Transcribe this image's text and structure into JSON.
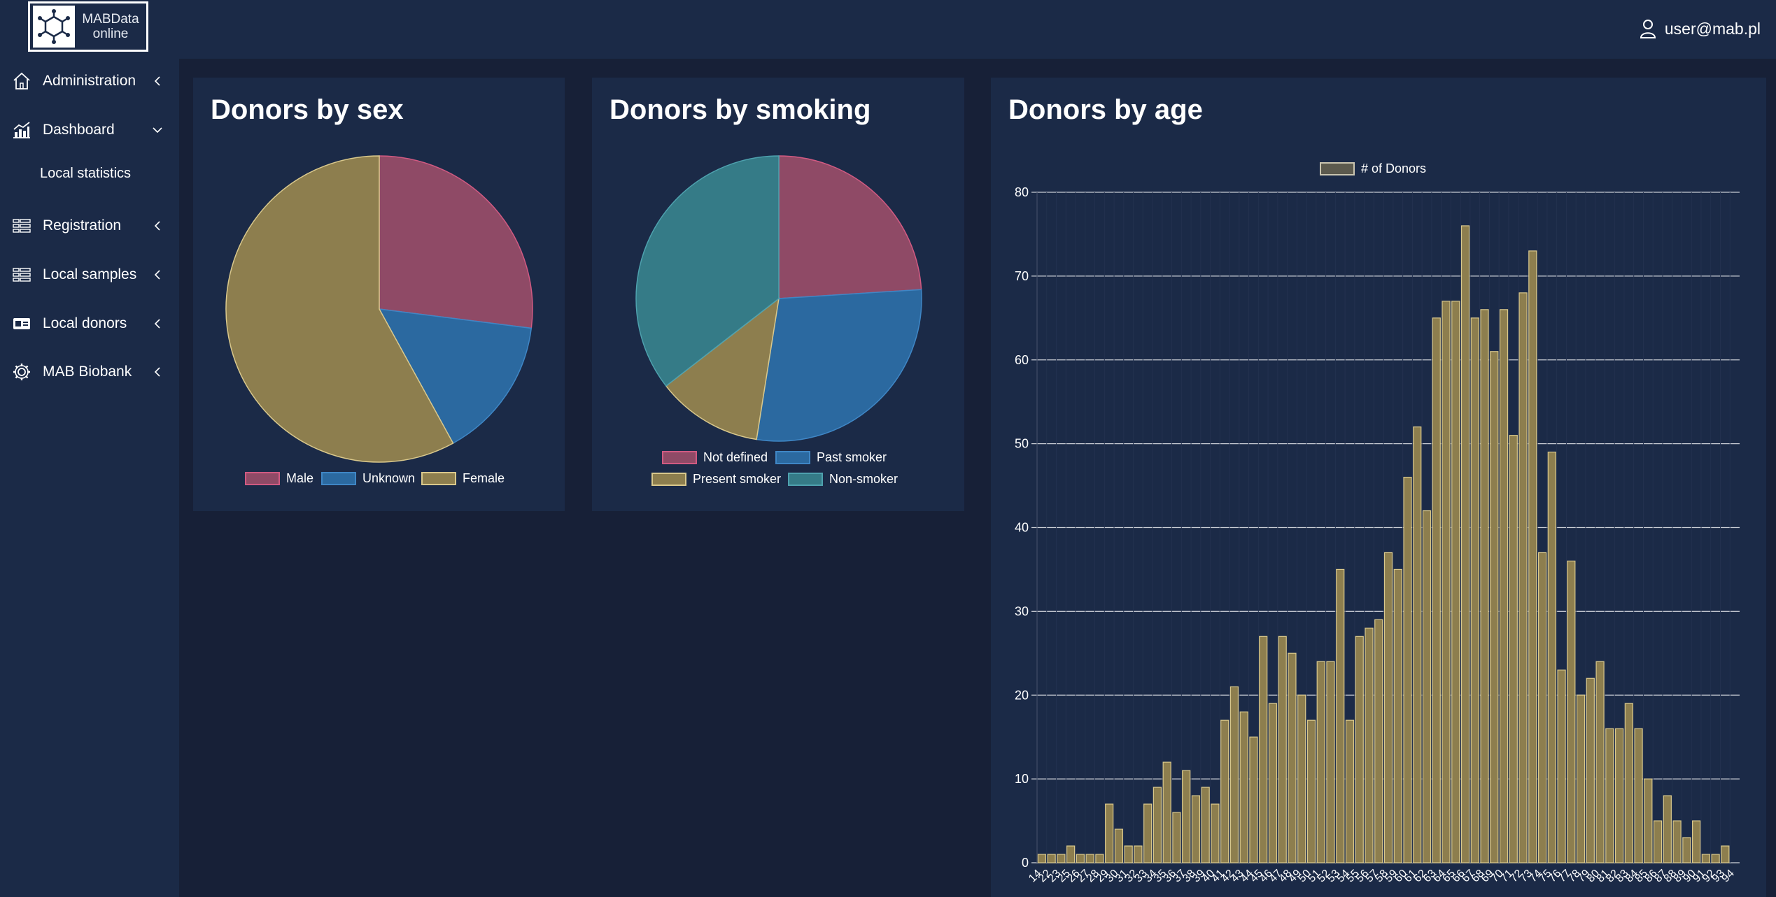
{
  "app": {
    "logo_line1": "MABData",
    "logo_line2": "online",
    "user_email": "user@mab.pl"
  },
  "sidebar": {
    "items": [
      {
        "label": "Administration",
        "icon": "home-icon"
      },
      {
        "label": "Dashboard",
        "icon": "chart-icon",
        "expanded": true
      },
      {
        "label": "Registration",
        "icon": "list-icon"
      },
      {
        "label": "Local samples",
        "icon": "list-icon"
      },
      {
        "label": "Local donors",
        "icon": "id-card-icon"
      },
      {
        "label": "MAB Biobank",
        "icon": "gear-icon"
      }
    ],
    "dashboard_sub": "Local statistics"
  },
  "colors": {
    "pink": "#8f4a66",
    "blue": "#2b69a0",
    "gold": "#8d7e4e",
    "teal": "#357b87",
    "bar_fill": "#8d7e4e",
    "bar_stroke": "#d9c88c"
  },
  "cards": {
    "sex_title": "Donors by sex",
    "smoking_title": "Donors by smoking",
    "age_title": "Donors by age"
  },
  "chart_data": [
    {
      "type": "pie",
      "title": "Donors by sex",
      "labels": [
        "Male",
        "Unknown",
        "Female"
      ],
      "values": [
        27,
        15,
        58
      ],
      "colors": [
        "#8f4a66",
        "#2b69a0",
        "#8d7e4e"
      ],
      "legend": "bottom"
    },
    {
      "type": "pie",
      "title": "Donors by smoking",
      "labels": [
        "Not defined",
        "Past smoker",
        "Present smoker",
        "Non-smoker"
      ],
      "values": [
        24,
        28.5,
        12,
        35.5
      ],
      "colors": [
        "#8f4a66",
        "#2b69a0",
        "#8d7e4e",
        "#357b87"
      ],
      "legend": "bottom"
    },
    {
      "type": "bar",
      "title": "Donors by age",
      "series_name": "# of Donors",
      "x": [
        14,
        22,
        23,
        25,
        26,
        27,
        28,
        29,
        30,
        31,
        32,
        33,
        34,
        35,
        36,
        37,
        38,
        39,
        40,
        41,
        42,
        43,
        44,
        45,
        46,
        47,
        48,
        49,
        50,
        51,
        52,
        53,
        54,
        55,
        56,
        57,
        58,
        59,
        60,
        61,
        62,
        63,
        64,
        65,
        66,
        67,
        68,
        69,
        70,
        71,
        72,
        73,
        74,
        75,
        76,
        77,
        78,
        79,
        80,
        81,
        82,
        83,
        84,
        85,
        86,
        87,
        88,
        89,
        90,
        91,
        92,
        93,
        94
      ],
      "values": [
        1,
        1,
        1,
        2,
        1,
        1,
        1,
        7,
        4,
        2,
        2,
        7,
        9,
        12,
        6,
        11,
        8,
        9,
        7,
        17,
        21,
        18,
        15,
        27,
        19,
        27,
        25,
        20,
        17,
        24,
        24,
        35,
        17,
        27,
        28,
        29,
        37,
        35,
        46,
        52,
        42,
        65,
        67,
        67,
        76,
        65,
        66,
        61,
        66,
        51,
        68,
        73,
        37,
        49,
        23,
        36,
        20,
        22,
        24,
        16,
        16,
        19,
        16,
        10,
        5,
        8,
        5,
        3,
        5,
        1,
        1,
        2,
        0
      ],
      "yticks": [
        0,
        10,
        20,
        30,
        40,
        50,
        60,
        70,
        80
      ],
      "ylim": [
        0,
        80
      ],
      "legend": "top"
    }
  ]
}
